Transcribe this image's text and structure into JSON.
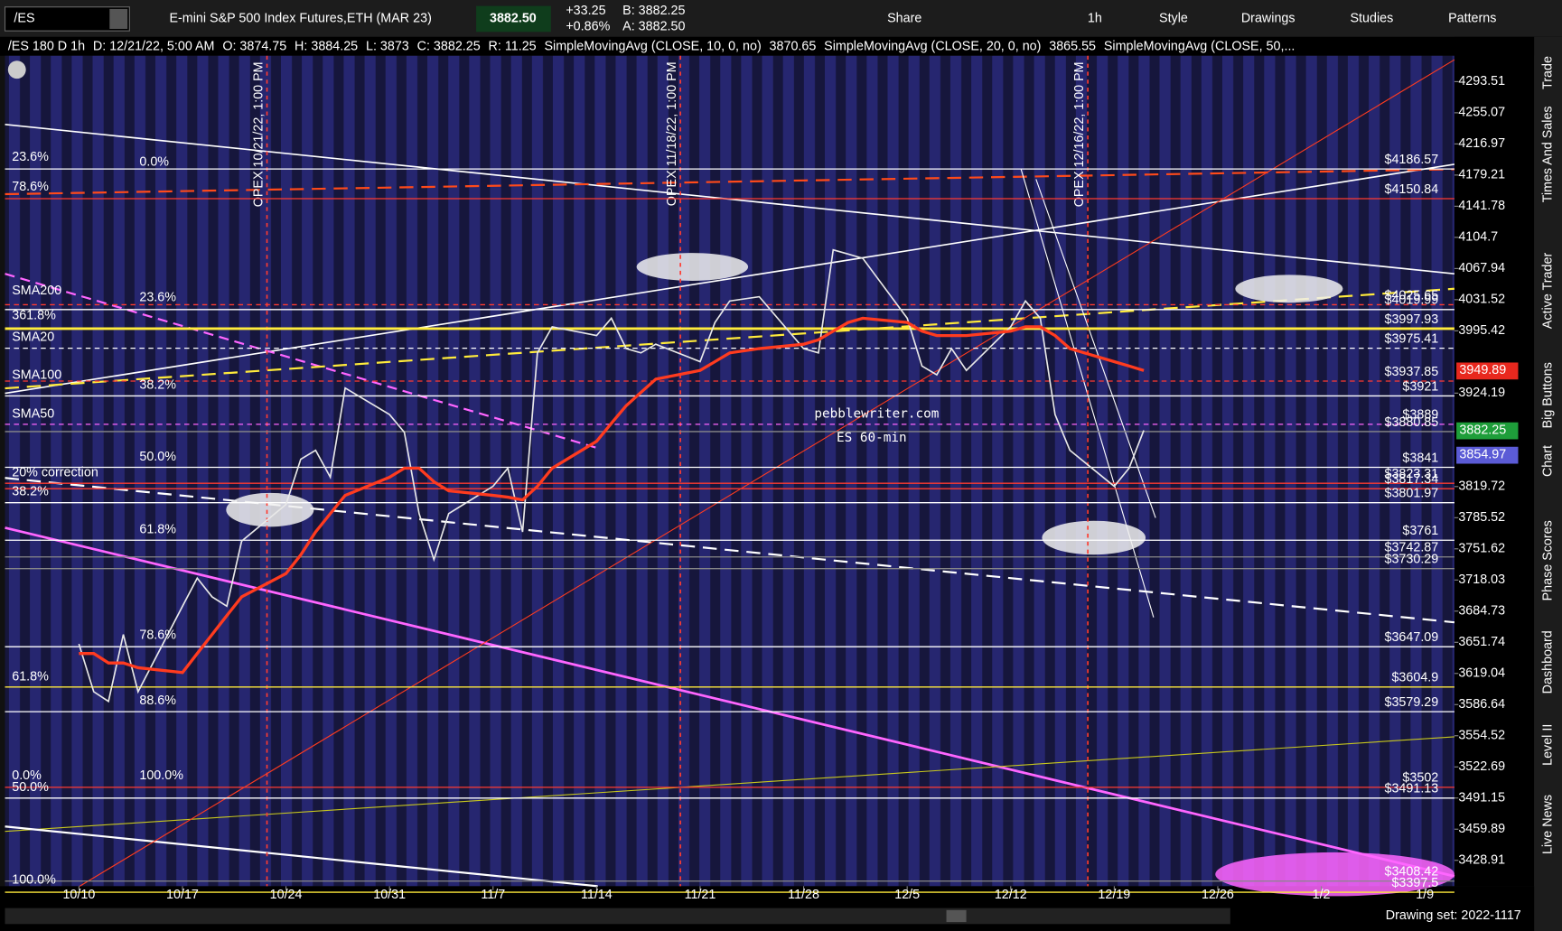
{
  "toolbar": {
    "symbol": "/ES",
    "title": "E-mini S&P 500 Index Futures,ETH (MAR 23)",
    "price": "3882.50",
    "change": "+33.25",
    "change_pct": "+0.86%",
    "bid": "B: 3882.25",
    "ask": "A: 3882.50",
    "buttons": [
      "Share",
      "1h",
      "Style",
      "Drawings",
      "Studies",
      "Patterns"
    ]
  },
  "info_bar": [
    {
      "text": "/ES 180 D 1h",
      "color": "#ffffff"
    },
    {
      "text": "D: 12/21/22, 5:00 AM",
      "color": "#d0d0d0"
    },
    {
      "text": "O: 3874.75",
      "color": "#d0d0d0"
    },
    {
      "text": "H: 3884.25",
      "color": "#d0d0d0"
    },
    {
      "text": "L: 3873",
      "color": "#d0d0d0"
    },
    {
      "text": "C: 3882.25",
      "color": "#d0d0d0"
    },
    {
      "text": "R: 11.25",
      "color": "#d0d0d0"
    },
    {
      "text": "SimpleMovingAvg (CLOSE, 10, 0, no)",
      "color": "#ff3b30"
    },
    {
      "text": "3870.65",
      "color": "#ff3b30"
    },
    {
      "text": "SimpleMovingAvg (CLOSE, 20, 0, no)",
      "color": "#ffffff"
    },
    {
      "text": "3865.55",
      "color": "#ffffff"
    },
    {
      "text": "SimpleMovingAvg (CLOSE, 50,...",
      "color": "#7b7bff"
    }
  ],
  "side_tabs": [
    "Trade",
    "Times And Sales",
    "Active Trader",
    "Big Buttons",
    "Chart",
    "Phase Scores",
    "Dashboard",
    "Level II",
    "Live News"
  ],
  "footer": {
    "drawing_set": "Drawing set: 2022-1117"
  },
  "chart_data": {
    "type": "line",
    "log_scale": true,
    "watermark": [
      "pebblewriter.com",
      "ES 60-min"
    ],
    "x": [
      "10/10",
      "10/11",
      "10/12",
      "10/13",
      "10/14",
      "10/17",
      "10/18",
      "10/19",
      "10/20",
      "10/21",
      "10/24",
      "10/25",
      "10/26",
      "10/27",
      "10/28",
      "10/31",
      "11/1",
      "11/2",
      "11/3",
      "11/4",
      "11/7",
      "11/8",
      "11/9",
      "11/10",
      "11/11",
      "11/14",
      "11/15",
      "11/16",
      "11/17",
      "11/18",
      "11/21",
      "11/22",
      "11/23",
      "11/25",
      "11/28",
      "11/29",
      "11/30",
      "12/1",
      "12/2",
      "12/5",
      "12/6",
      "12/7",
      "12/8",
      "12/9",
      "12/12",
      "12/13",
      "12/14",
      "12/15",
      "12/16",
      "12/19",
      "12/20",
      "12/21"
    ],
    "series": [
      {
        "color": "#e8e8e8",
        "values": [
          3650,
          3600,
          3590,
          3660,
          3600,
          3690,
          3720,
          3700,
          3690,
          3760,
          3800,
          3850,
          3860,
          3830,
          3930,
          3900,
          3880,
          3790,
          3740,
          3790,
          3820,
          3840,
          3770,
          3970,
          4000,
          3990,
          4010,
          3975,
          3970,
          3980,
          3960,
          4005,
          4030,
          4035,
          3975,
          3970,
          4090,
          4085,
          4080,
          4010,
          3955,
          3945,
          3975,
          3950,
          4000,
          4030,
          4010,
          3900,
          3860,
          3820,
          3840,
          3882.25
        ]
      },
      {
        "color": "#ff3b1f",
        "values": [
          3640,
          3640,
          3630,
          3630,
          3625,
          3620,
          3640,
          3660,
          3680,
          3700,
          3725,
          3745,
          3770,
          3790,
          3810,
          3830,
          3840,
          3840,
          3825,
          3815,
          3810,
          3808,
          3805,
          3820,
          3840,
          3870,
          3890,
          3910,
          3925,
          3940,
          3950,
          3960,
          3970,
          3975,
          3980,
          3985,
          3995,
          4005,
          4010,
          4005,
          3995,
          3990,
          3990,
          3990,
          3995,
          4000,
          4000,
          3990,
          3975,
          3960,
          3955,
          3949.89
        ]
      }
    ],
    "xlim": [
      "10/5",
      "1/11"
    ],
    "xticks": [
      "10/10",
      "10/17",
      "10/24",
      "10/31",
      "11/7",
      "11/14",
      "11/21",
      "11/28",
      "12/5",
      "12/12",
      "12/19",
      "12/26",
      "1/2",
      "1/9"
    ],
    "ylim": [
      3403.4,
      4325.7
    ],
    "yticks": [
      4293.51,
      4255.07,
      4216.97,
      4179.21,
      4141.78,
      4104.7,
      4067.94,
      4031.52,
      3995.42,
      3924.19,
      3819.72,
      3785.52,
      3751.62,
      3718.03,
      3684.73,
      3651.74,
      3619.04,
      3586.64,
      3554.52,
      3522.69,
      3491.15,
      3459.89,
      3428.91
    ],
    "levels": [
      {
        "value": 4186.57,
        "label": "$4186.57",
        "color": "#ffffff"
      },
      {
        "value": 4150.84,
        "label": "$4150.84",
        "color": "#ff3b30"
      },
      {
        "value": 4025.65,
        "label": "$4025.65",
        "color": "#ff3b30",
        "dashed": true
      },
      {
        "value": 4019.99,
        "label": "$4019.99",
        "color": "#ffffff"
      },
      {
        "value": 3997.93,
        "label": "$3997.93",
        "color": "#ffeb3b"
      },
      {
        "value": 3975.41,
        "label": "$3975.41",
        "color": "#ffffff",
        "dashed": true
      },
      {
        "value": 3937.85,
        "label": "$3937.85",
        "color": "#ff3b30",
        "dashed": true
      },
      {
        "value": 3921,
        "label": "$3921",
        "color": "#ffffff"
      },
      {
        "value": 3889,
        "label": "$3889",
        "color": "#ff66ff",
        "dashed": true
      },
      {
        "value": 3880.85,
        "label": "$3880.85",
        "color": "#888888"
      },
      {
        "value": 3841,
        "label": "$3841",
        "color": "#ffffff"
      },
      {
        "value": 3823.31,
        "label": "$3823.31",
        "color": "#ff3b30"
      },
      {
        "value": 3817.34,
        "label": "$3817.34",
        "color": "#ff3b30"
      },
      {
        "value": 3801.97,
        "label": "$3801.97",
        "color": "#ffffff"
      },
      {
        "value": 3761,
        "label": "$3761",
        "color": "#ffffff"
      },
      {
        "value": 3742.87,
        "label": "$3742.87",
        "color": "#888888"
      },
      {
        "value": 3730.29,
        "label": "$3730.29",
        "color": "#888888"
      },
      {
        "value": 3647.09,
        "label": "$3647.09",
        "color": "#ffffff"
      },
      {
        "value": 3604.9,
        "label": "$3604.9",
        "color": "#ffeb3b"
      },
      {
        "value": 3579.29,
        "label": "$3579.29",
        "color": "#ffffff"
      },
      {
        "value": 3502,
        "label": "$3502",
        "color": "#ff3b30"
      },
      {
        "value": 3491.13,
        "label": "$3491.13",
        "color": "#ffffff"
      },
      {
        "value": 3408.42,
        "label": "$3408.42",
        "color": "#888888"
      },
      {
        "value": 3397.5,
        "label": "$3397.5",
        "color": "#ffeb3b"
      }
    ],
    "price_badges": [
      {
        "value": 3949.89,
        "color": "#e8281e"
      },
      {
        "value": 3882.25,
        "color": "#1e9e3a"
      },
      {
        "value": 3854.97,
        "color": "#5b5bd6"
      }
    ],
    "annotations": [
      {
        "text": "23.6%",
        "color": "#ffffff"
      },
      {
        "text": "0.0%",
        "color": "#ffffff"
      },
      {
        "text": "78.6%",
        "color": "#ff3b30"
      },
      {
        "text": "SMA200",
        "color": "#ff3b30"
      },
      {
        "text": "23.6%",
        "color": "#ffffff"
      },
      {
        "text": "361.8%",
        "color": "#ffeb3b"
      },
      {
        "text": "SMA20",
        "color": "#ffffff"
      },
      {
        "text": "SMA100",
        "color": "#ffeb3b"
      },
      {
        "text": "38.2%",
        "color": "#ffffff"
      },
      {
        "text": "SMA50",
        "color": "#ff66ff"
      },
      {
        "text": "50.0%",
        "color": "#ffffff"
      },
      {
        "text": "20% correction",
        "color": "#ff3b30"
      },
      {
        "text": "38.2%",
        "color": "#ffffff"
      },
      {
        "text": "61.8%",
        "color": "#ffffff"
      },
      {
        "text": "78.6%",
        "color": "#ffffff"
      },
      {
        "text": "61.8%",
        "color": "#ffeb3b"
      },
      {
        "text": "88.6%",
        "color": "#ffffff"
      },
      {
        "text": "100.0%",
        "color": "#ffffff"
      },
      {
        "text": "0.0%",
        "color": "#ff3b30"
      },
      {
        "text": "50.0%",
        "color": "#ffffff"
      },
      {
        "text": "100.0%",
        "color": "#ffeb3b"
      }
    ],
    "opex": [
      "OPEX 10/21/22, 1:00 PM",
      "OPEX 11/18/22, 1:00 PM",
      "OPEX 12/16/22, 1:00 PM"
    ]
  }
}
